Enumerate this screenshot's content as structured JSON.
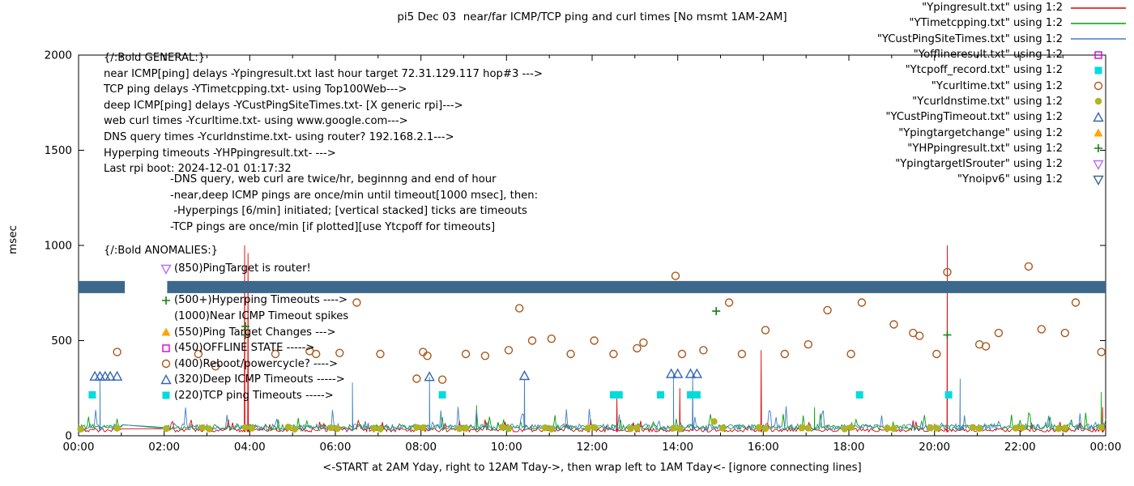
{
  "title": "pi5 Dec 03  near/far ICMP/TCP ping and curl times [No msmt 1AM-2AM]",
  "chart_data": {
    "type": "line",
    "title": "pi5 Dec 03  near/far ICMP/TCP ping and curl times [No msmt 1AM-2AM]",
    "xlabel": "<-START at 2AM Yday, right to 12AM Tday->, then wrap left to 1AM Tday<- [ignore connecting lines]",
    "ylabel": "msec",
    "xlim": [
      0,
      24
    ],
    "ylim": [
      0,
      2000
    ],
    "yticks": [
      0,
      500,
      1000,
      1500,
      2000
    ],
    "xticks": {
      "positions": [
        0,
        2,
        4,
        6,
        8,
        10,
        12,
        14,
        16,
        18,
        20,
        22,
        24
      ],
      "labels": [
        "00:00",
        "02:00",
        "04:00",
        "06:00",
        "08:00",
        "10:00",
        "12:00",
        "14:00",
        "16:00",
        "18:00",
        "20:00",
        "22:00",
        "00:00"
      ]
    },
    "grid": false,
    "legend_position": "top-right-inside",
    "no_measurement_gap_hours": [
      1,
      2
    ],
    "band": {
      "name": "Ynoipv6-band",
      "color": "#3c688c",
      "y": [
        749,
        813
      ],
      "segments": [
        [
          0,
          1.08
        ],
        [
          2.07,
          24
        ]
      ]
    },
    "series": [
      {
        "name": "Ypingresult",
        "legend_label": "\"Ypingresult.txt\" using 1:2",
        "style": "line",
        "color": "#e00000",
        "base": 20,
        "amp": 55,
        "seed": 7,
        "spikes": [
          [
            3.88,
            1000
          ],
          [
            3.96,
            960
          ],
          [
            12.58,
            200
          ],
          [
            14.05,
            250
          ],
          [
            15.95,
            450
          ],
          [
            20.3,
            1000
          ],
          [
            23.93,
            150
          ]
        ]
      },
      {
        "name": "YTimetcpping",
        "legend_label": "\"YTimetcpping.txt\" using 1:2",
        "style": "line",
        "color": "#00a000",
        "base": 32,
        "amp": 75,
        "seed": 13,
        "spikes": [
          [
            9.3,
            160
          ],
          [
            17.2,
            150
          ],
          [
            23.9,
            230
          ]
        ]
      },
      {
        "name": "YCustPingSiteTimes",
        "legend_label": "\"YCustPingSiteTimes.txt\" using 1:2",
        "style": "line",
        "color": "#3e7fc1",
        "base": 26,
        "amp": 105,
        "seed": 29,
        "spikes": [
          [
            0.5,
            300
          ],
          [
            6.4,
            280
          ],
          [
            8.2,
            310
          ],
          [
            10.42,
            300
          ],
          [
            13.9,
            320
          ],
          [
            14.35,
            320
          ],
          [
            20.6,
            300
          ]
        ]
      },
      {
        "name": "Yofflineresult",
        "legend_label": "\"Yofflineresult.txt\" using 1:2",
        "style": "square-open",
        "color": "#d400d4",
        "points": []
      },
      {
        "name": "Ytcpoff_record",
        "legend_label": "\"Ytcpoff_record.txt\" using 1:2",
        "style": "square-filled",
        "color": "#00dcdc",
        "points": [
          [
            0.32,
            215
          ],
          [
            8.5,
            215
          ],
          [
            12.5,
            215
          ],
          [
            12.63,
            215
          ],
          [
            13.6,
            215
          ],
          [
            14.3,
            215
          ],
          [
            14.45,
            215
          ],
          [
            18.25,
            215
          ],
          [
            20.33,
            215
          ]
        ]
      },
      {
        "name": "Ycurltime",
        "legend_label": "\"Ycurltime.txt\" using 1:2",
        "style": "circle-open",
        "color": "#a8581e",
        "points": [
          [
            0.9,
            440
          ],
          [
            2.8,
            430
          ],
          [
            3.2,
            365
          ],
          [
            4.6,
            430
          ],
          [
            5.4,
            445
          ],
          [
            5.55,
            430
          ],
          [
            6.1,
            435
          ],
          [
            6.5,
            700
          ],
          [
            7.05,
            430
          ],
          [
            7.9,
            300
          ],
          [
            8.05,
            440
          ],
          [
            8.15,
            420
          ],
          [
            8.5,
            295
          ],
          [
            9.05,
            430
          ],
          [
            9.5,
            420
          ],
          [
            10.05,
            450
          ],
          [
            10.3,
            670
          ],
          [
            10.6,
            500
          ],
          [
            11.05,
            510
          ],
          [
            11.5,
            430
          ],
          [
            12.05,
            500
          ],
          [
            12.5,
            430
          ],
          [
            13.05,
            460
          ],
          [
            13.2,
            490
          ],
          [
            13.95,
            840
          ],
          [
            14.1,
            430
          ],
          [
            14.6,
            450
          ],
          [
            15.2,
            700
          ],
          [
            15.5,
            430
          ],
          [
            16.05,
            555
          ],
          [
            16.5,
            430
          ],
          [
            17.05,
            480
          ],
          [
            17.5,
            660
          ],
          [
            18.05,
            430
          ],
          [
            18.3,
            700
          ],
          [
            19.05,
            585
          ],
          [
            19.5,
            540
          ],
          [
            19.65,
            525
          ],
          [
            20.05,
            430
          ],
          [
            20.3,
            860
          ],
          [
            21.05,
            480
          ],
          [
            21.2,
            470
          ],
          [
            21.5,
            540
          ],
          [
            22.2,
            890
          ],
          [
            22.5,
            560
          ],
          [
            23.05,
            540
          ],
          [
            23.3,
            700
          ],
          [
            23.9,
            440
          ]
        ]
      },
      {
        "name": "Ycurldnstime",
        "legend_label": "\"Ycurldnstime.txt\" using 1:2",
        "style": "circle-filled",
        "color": "#b0b41e",
        "points": [
          [
            0.05,
            35
          ],
          [
            0.9,
            40
          ],
          [
            2.05,
            38
          ],
          [
            2.9,
            42
          ],
          [
            3.05,
            36
          ],
          [
            3.9,
            44
          ],
          [
            4.05,
            40
          ],
          [
            4.9,
            46
          ],
          [
            5.05,
            35
          ],
          [
            5.9,
            42
          ],
          [
            6.05,
            38
          ],
          [
            6.9,
            40
          ],
          [
            7.05,
            36
          ],
          [
            7.9,
            44
          ],
          [
            8.05,
            42
          ],
          [
            8.9,
            38
          ],
          [
            9.05,
            40
          ],
          [
            9.9,
            45
          ],
          [
            10.05,
            38
          ],
          [
            10.9,
            42
          ],
          [
            11.05,
            36
          ],
          [
            11.9,
            40
          ],
          [
            12.05,
            44
          ],
          [
            12.9,
            38
          ],
          [
            13.05,
            42
          ],
          [
            13.9,
            40
          ],
          [
            14.05,
            36
          ],
          [
            14.85,
            75
          ],
          [
            15.05,
            40
          ],
          [
            15.9,
            44
          ],
          [
            16.05,
            38
          ],
          [
            16.9,
            42
          ],
          [
            17.05,
            40
          ],
          [
            17.9,
            36
          ],
          [
            18.05,
            44
          ],
          [
            18.9,
            40
          ],
          [
            19.05,
            38
          ],
          [
            19.9,
            42
          ],
          [
            20.05,
            40
          ],
          [
            20.9,
            44
          ],
          [
            21.05,
            38
          ],
          [
            21.9,
            40
          ],
          [
            22.05,
            42
          ],
          [
            22.9,
            38
          ],
          [
            23.05,
            40
          ],
          [
            23.9,
            44
          ]
        ]
      },
      {
        "name": "YCustPingTimeout",
        "legend_label": "\"YCustPingTimeout.txt\" using 1:2",
        "style": "triangle-open",
        "color": "#3465b4",
        "points": [
          [
            0.38,
            312
          ],
          [
            0.5,
            312
          ],
          [
            0.62,
            312
          ],
          [
            0.74,
            312
          ],
          [
            0.9,
            312
          ],
          [
            8.2,
            310
          ],
          [
            10.42,
            315
          ],
          [
            13.85,
            325
          ],
          [
            14.0,
            325
          ],
          [
            14.3,
            325
          ],
          [
            14.45,
            325
          ]
        ]
      },
      {
        "name": "Ypingtargetchange",
        "legend_label": "\"Ypingtargetchange\" using 1:2",
        "style": "triangle-filled",
        "color": "#ffa500",
        "points": []
      },
      {
        "name": "YHPpingresult",
        "legend_label": "\"YHPpingresult.txt\" using 1:2",
        "style": "plus",
        "color": "#157f15",
        "points": [
          [
            3.9,
            530
          ],
          [
            3.9,
            575
          ],
          [
            14.9,
            655
          ],
          [
            20.3,
            530
          ]
        ]
      },
      {
        "name": "YpingtargetISrouter",
        "legend_label": "\"YpingtargetISrouter\" using 1:2",
        "style": "nabla-open",
        "color": "#b66dff",
        "points": []
      },
      {
        "name": "Ynoipv6",
        "legend_label": "\"Ynoipv6\" using 1:2",
        "style": "nabla-open",
        "color": "#3c688c",
        "points": []
      }
    ]
  },
  "annotations": {
    "general_header_lines": [
      "{/:Bold GENERAL:}",
      "near ICMP[ping] delays -Ypingresult.txt last hour target 72.31.129.117 hop#3 --->",
      "TCP ping delays -YTimetcpping.txt- using Top100Web--->",
      "deep ICMP[ping] delays -YCustPingSiteTimes.txt- [X generic rpi]--->",
      "web curl times -Ycurltime.txt- using www.google.com--->",
      "DNS query times -Ycurldnstime.txt- using router? 192.168.2.1--->",
      "Hyperping timeouts -YHPpingresult.txt- --->",
      "Last rpi boot: 2024-12-01 01:17:32"
    ],
    "notes_lines": [
      "-DNS query, web curl are twice/hr, beginnng and end of hour",
      "-near,deep ICMP pings are once/min until timeout[1000 msec], then:",
      " -Hyperpings [6/min] initiated; [vertical stacked] ticks are timeouts",
      "-TCP pings are once/min [if plotted][use Ytcpoff for timeouts]"
    ],
    "anomalies_header": "{/:Bold ANOMALIES:}",
    "anomalies": [
      {
        "row": 1,
        "marker": "nabla-open",
        "color": "#b66dff",
        "text": "(850)PingTarget is router!"
      },
      {
        "row": 3,
        "marker": "plus",
        "color": "#157f15",
        "text": "(500+)Hyperping Timeouts ---->"
      },
      {
        "row": 4,
        "marker": "none",
        "color": "#000000",
        "text": "(1000)Near ICMP Timeout spikes"
      },
      {
        "row": 5,
        "marker": "triangle-filled",
        "color": "#ffa500",
        "text": "(550)Ping Target Changes --->"
      },
      {
        "row": 6,
        "marker": "square-open",
        "color": "#d400d4",
        "text": "(450)OFFLINE STATE ----->"
      },
      {
        "row": 7,
        "marker": "circle-open",
        "color": "#a8581e",
        "text": "(400)Reboot/powercycle? ---->"
      },
      {
        "row": 8,
        "marker": "triangle-open",
        "color": "#3465b4",
        "text": "(320)Deep ICMP Timeouts ----->"
      },
      {
        "row": 9,
        "marker": "square-filled",
        "color": "#00dcdc",
        "text": "(220)TCP ping Timeouts ----->"
      }
    ]
  }
}
